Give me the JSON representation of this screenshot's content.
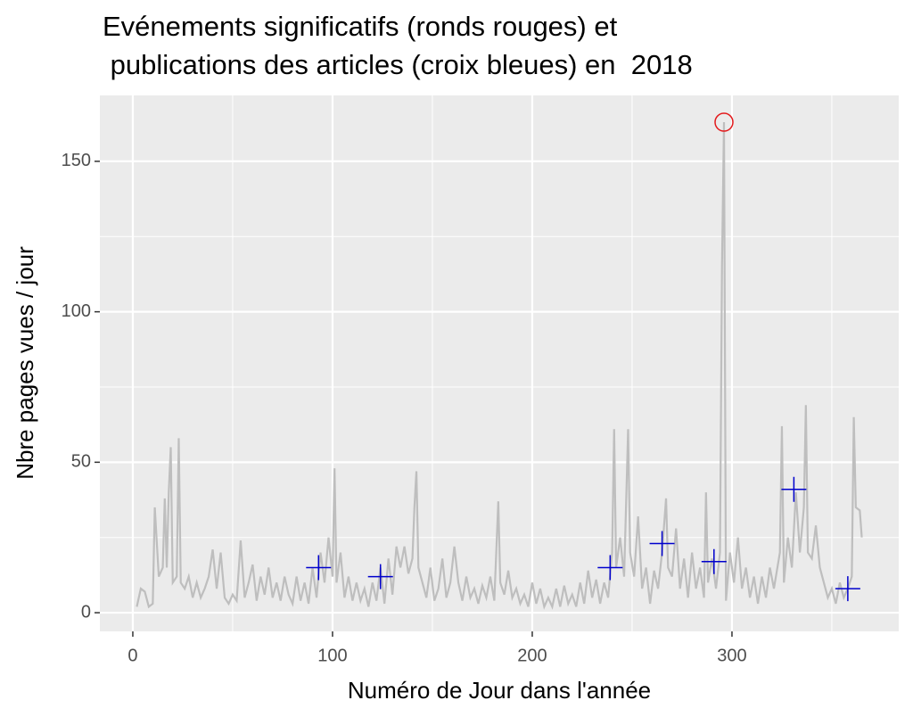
{
  "chart_data": {
    "type": "line",
    "title": "Evénements significatifs (ronds rouges) et\n publications des articles (croix bleues) en  2018",
    "x_label": "Numéro de Jour dans l'année",
    "y_label": "Nbre pages vues / jour",
    "xlim": [
      -16.5,
      383.5
    ],
    "ylim": [
      -6.2,
      171.9
    ],
    "xticks": [
      0,
      100,
      200,
      300
    ],
    "yticks": [
      0,
      50,
      100,
      150
    ],
    "x_minor_ticks": [
      50,
      150,
      250,
      350
    ],
    "y_minor_ticks": [
      25,
      75,
      125
    ],
    "grid": true,
    "series": [
      {
        "name": "pages vues",
        "color": "#bebebe",
        "x": [
          2,
          4,
          6,
          8,
          10,
          11,
          13,
          15,
          16,
          17,
          18,
          19,
          20,
          22,
          23,
          24,
          26,
          28,
          30,
          32,
          34,
          36,
          38,
          40,
          42,
          44,
          46,
          48,
          50,
          52,
          54,
          56,
          58,
          60,
          62,
          64,
          66,
          68,
          70,
          72,
          74,
          76,
          78,
          80,
          82,
          84,
          86,
          88,
          90,
          92,
          94,
          96,
          98,
          100,
          101,
          102,
          104,
          106,
          108,
          110,
          112,
          114,
          116,
          118,
          120,
          122,
          124,
          126,
          128,
          130,
          132,
          134,
          136,
          138,
          140,
          141,
          142,
          143,
          145,
          147,
          149,
          151,
          153,
          155,
          157,
          159,
          161,
          163,
          165,
          167,
          169,
          171,
          173,
          175,
          177,
          179,
          181,
          183,
          184,
          186,
          188,
          190,
          192,
          194,
          196,
          198,
          200,
          202,
          204,
          206,
          208,
          210,
          212,
          214,
          216,
          218,
          220,
          222,
          224,
          226,
          228,
          230,
          232,
          234,
          236,
          238,
          240,
          241,
          242,
          244,
          246,
          248,
          249,
          251,
          253,
          255,
          257,
          259,
          261,
          263,
          265,
          267,
          268,
          270,
          272,
          274,
          276,
          278,
          280,
          282,
          284,
          286,
          287,
          288,
          290,
          292,
          294,
          295,
          296,
          297,
          299,
          301,
          303,
          305,
          307,
          309,
          311,
          313,
          315,
          317,
          319,
          321,
          324,
          325,
          326,
          328,
          330,
          332,
          334,
          336,
          337,
          338,
          340,
          342,
          344,
          346,
          348,
          350,
          352,
          354,
          356,
          358,
          360,
          361,
          362,
          364,
          365
        ],
        "values": [
          2,
          8,
          7,
          2,
          3,
          35,
          12,
          15,
          38,
          15,
          40,
          55,
          10,
          12,
          58,
          10,
          8,
          12,
          5,
          10,
          5,
          8,
          12,
          21,
          8,
          20,
          5,
          3,
          6,
          4,
          24,
          5,
          10,
          16,
          4,
          12,
          6,
          15,
          5,
          10,
          4,
          12,
          6,
          3,
          12,
          4,
          10,
          3,
          15,
          5,
          20,
          10,
          25,
          12,
          48,
          10,
          20,
          5,
          12,
          4,
          10,
          4,
          8,
          2,
          10,
          4,
          15,
          3,
          18,
          6,
          22,
          15,
          22,
          13,
          18,
          35,
          47,
          15,
          10,
          5,
          15,
          4,
          8,
          18,
          5,
          10,
          22,
          10,
          4,
          12,
          5,
          8,
          3,
          9,
          5,
          12,
          4,
          37,
          10,
          6,
          14,
          5,
          8,
          3,
          6,
          2,
          10,
          3,
          8,
          2,
          5,
          2,
          8,
          2,
          9,
          3,
          6,
          2,
          10,
          3,
          14,
          5,
          11,
          3,
          10,
          5,
          20,
          61,
          15,
          25,
          12,
          61,
          20,
          12,
          32,
          8,
          15,
          3,
          14,
          8,
          20,
          38,
          15,
          12,
          28,
          8,
          18,
          5,
          20,
          8,
          15,
          5,
          40,
          10,
          18,
          8,
          20,
          115,
          163,
          4,
          20,
          10,
          25,
          8,
          15,
          5,
          12,
          3,
          12,
          5,
          15,
          8,
          20,
          62,
          10,
          25,
          15,
          40,
          20,
          35,
          69,
          20,
          18,
          29,
          15,
          10,
          5,
          8,
          3,
          10,
          5,
          8,
          12,
          65,
          35,
          34,
          25
        ]
      },
      {
        "name": "publications",
        "color": "#0000cd",
        "marker": "cross",
        "x": [
          93,
          124,
          239,
          265,
          291,
          331,
          358
        ],
        "values": [
          15,
          12,
          15,
          23,
          17,
          41,
          8
        ]
      },
      {
        "name": "événements",
        "color": "#e31a1c",
        "marker": "circle",
        "x": [
          296
        ],
        "values": [
          163
        ]
      }
    ]
  }
}
